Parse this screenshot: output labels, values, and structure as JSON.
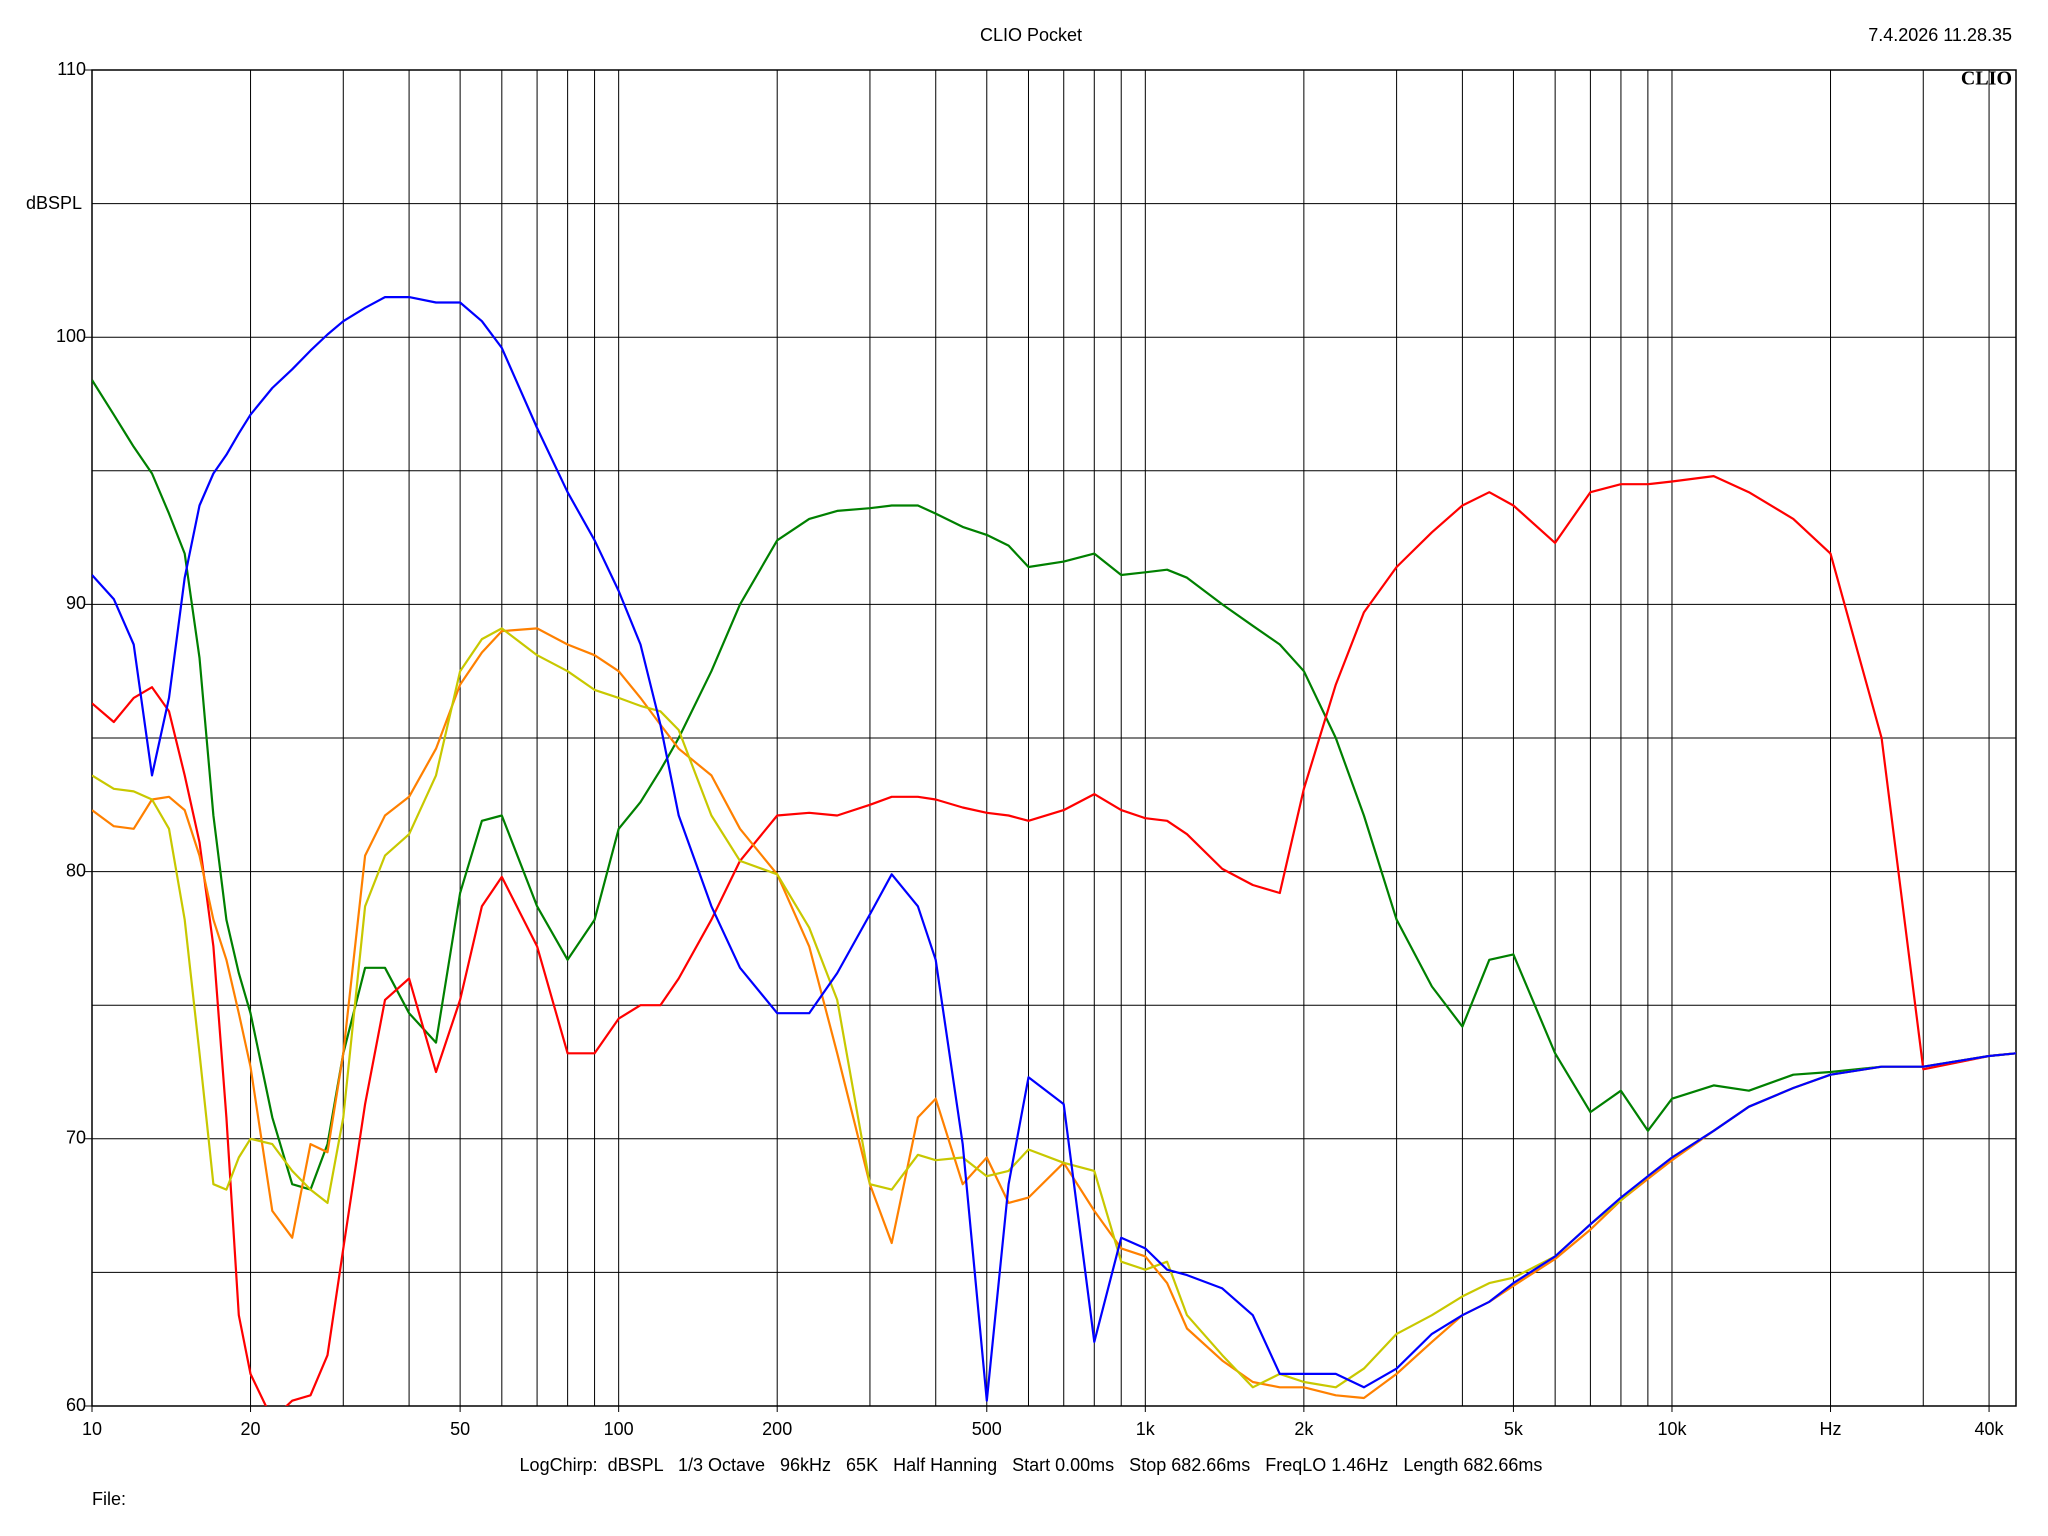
{
  "chart_data": {
    "type": "line",
    "title": "CLIO Pocket",
    "timestamp": "7.4.2026 11.28.35",
    "logo": "CLIO",
    "ylabel": "dBSPL",
    "footer": "LogChirp:  dBSPL   1/3 Octave   96kHz   65K   Half Hanning   Start 0.00ms   Stop 682.66ms   FreqLO 1.46Hz   Length 682.66ms",
    "file_label": "File:",
    "xscale": "log",
    "grid": true,
    "xlim": [
      10,
      45000
    ],
    "ylim": [
      60,
      110
    ],
    "xticks": [
      10,
      20,
      50,
      100,
      200,
      500,
      {
        "value": 1000,
        "label": "1k"
      },
      {
        "value": 2000,
        "label": "2k"
      },
      {
        "value": 5000,
        "label": "5k"
      },
      {
        "value": 10000,
        "label": "10k"
      },
      {
        "value": 20000,
        "label": "Hz"
      },
      {
        "value": 40000,
        "label": "40k"
      }
    ],
    "xminor": [
      30,
      40,
      60,
      70,
      80,
      90,
      300,
      400,
      600,
      700,
      800,
      900,
      3000,
      4000,
      6000,
      7000,
      8000,
      9000,
      30000
    ],
    "yticks": [
      60,
      70,
      80,
      90,
      100,
      110
    ],
    "yminor": [
      65,
      75,
      85,
      95,
      105
    ],
    "x": [
      10,
      11,
      12,
      13,
      14,
      15,
      16,
      17,
      18,
      19,
      20,
      22,
      24,
      26,
      28,
      30,
      33,
      36,
      40,
      45,
      50,
      55,
      60,
      70,
      80,
      90,
      100,
      110,
      120,
      130,
      150,
      170,
      200,
      230,
      260,
      300,
      330,
      370,
      400,
      450,
      500,
      550,
      600,
      700,
      800,
      900,
      1000,
      1100,
      1200,
      1400,
      1600,
      1800,
      2000,
      2300,
      2600,
      3000,
      3500,
      4000,
      4500,
      5000,
      6000,
      7000,
      8000,
      9000,
      10000,
      12000,
      14000,
      17000,
      20000,
      25000,
      30000,
      40000,
      45000
    ],
    "series": [
      {
        "color": "#008000",
        "values": [
          98.4,
          97.1,
          95.9,
          94.9,
          93.4,
          91.9,
          88,
          82.1,
          78.2,
          76.2,
          74.7,
          70.8,
          68.3,
          68.1,
          69.8,
          73.2,
          76.4,
          76.4,
          74.7,
          73.6,
          79.2,
          81.9,
          82.1,
          78.7,
          76.7,
          78.2,
          81.6,
          82.6,
          83.8,
          85,
          87.5,
          90,
          92.4,
          93.2,
          93.5,
          93.6,
          93.7,
          93.7,
          93.4,
          92.9,
          92.6,
          92.2,
          91.4,
          91.6,
          91.9,
          91.1,
          91.2,
          91.3,
          91.0,
          90,
          89.2,
          88.5,
          87.5,
          85,
          82.1,
          78.2,
          75.7,
          74.2,
          76.7,
          76.9,
          73.2,
          71.0,
          71.8,
          70.3,
          71.5,
          72,
          71.8,
          72.4,
          72.5,
          72.7,
          72.7,
          73.1,
          73.2
        ]
      },
      {
        "color": "#ff0000",
        "values": [
          86.3,
          85.6,
          86.5,
          86.9,
          86.0,
          83.6,
          81.1,
          77.2,
          70.8,
          63.4,
          61.2,
          59.5,
          60.2,
          60.4,
          61.9,
          65.9,
          71.3,
          75.2,
          76.0,
          72.5,
          75.2,
          78.7,
          79.8,
          77.2,
          73.2,
          73.2,
          74.5,
          75.0,
          75.0,
          76.0,
          78.2,
          80.4,
          82.1,
          82.2,
          82.1,
          82.5,
          82.8,
          82.8,
          82.7,
          82.4,
          82.2,
          82.1,
          81.9,
          82.3,
          82.9,
          82.3,
          82.0,
          81.9,
          81.4,
          80.1,
          79.5,
          79.2,
          83.1,
          87.0,
          89.7,
          91.4,
          92.7,
          93.7,
          94.2,
          93.7,
          92.3,
          94.2,
          94.5,
          94.5,
          94.6,
          94.8,
          94.2,
          93.2,
          91.9,
          85.0,
          72.6,
          73.1,
          73.2
        ]
      },
      {
        "color": "#ff8000",
        "values": [
          82.3,
          81.7,
          81.6,
          82.7,
          82.8,
          82.3,
          80.6,
          78.2,
          76.7,
          74.7,
          72.7,
          67.3,
          66.3,
          69.8,
          69.5,
          73.2,
          80.6,
          82.1,
          82.8,
          84.6,
          87,
          88.2,
          89,
          89.1,
          88.5,
          88.1,
          87.5,
          86.5,
          85.5,
          84.6,
          83.6,
          81.6,
          79.9,
          77.2,
          73.2,
          68.3,
          66.1,
          70.8,
          71.5,
          68.3,
          69.3,
          67.6,
          67.8,
          69.1,
          67.3,
          65.9,
          65.6,
          64.6,
          62.9,
          61.7,
          60.9,
          60.7,
          60.7,
          60.4,
          60.3,
          61.2,
          62.4,
          63.4,
          63.9,
          64.5,
          65.5,
          66.6,
          67.7,
          68.5,
          69.2,
          70.3,
          71.2,
          71.9,
          72.4,
          72.7,
          72.7,
          73.1,
          73.2
        ]
      },
      {
        "color": "#c8c800",
        "values": [
          83.6,
          83.1,
          83.0,
          82.7,
          81.6,
          78.2,
          73.2,
          68.3,
          68.1,
          69.3,
          70.0,
          69.8,
          68.8,
          68.1,
          67.6,
          70.8,
          78.7,
          80.6,
          81.4,
          83.6,
          87.5,
          88.7,
          89.1,
          88.1,
          87.5,
          86.8,
          86.5,
          86.2,
          86.0,
          85.3,
          82.1,
          80.4,
          79.9,
          77.9,
          75.2,
          68.3,
          68.1,
          69.4,
          69.2,
          69.3,
          68.6,
          68.8,
          69.6,
          69.1,
          68.8,
          65.4,
          65.1,
          65.4,
          63.4,
          61.9,
          60.7,
          61.2,
          60.9,
          60.7,
          61.4,
          62.7,
          63.4,
          64.1,
          64.6,
          64.8,
          65.6,
          66.8,
          67.7,
          68.6,
          69.3,
          70.3,
          71.2,
          71.9,
          72.4,
          72.7,
          72.7,
          73.1,
          73.2
        ]
      },
      {
        "color": "#0000ff",
        "values": [
          91.1,
          90.2,
          88.5,
          83.6,
          86.5,
          91,
          93.7,
          94.9,
          95.6,
          96.4,
          97.1,
          98.1,
          98.8,
          99.5,
          100.1,
          100.6,
          101.1,
          101.5,
          101.5,
          101.3,
          101.3,
          100.6,
          99.6,
          96.6,
          94.2,
          92.4,
          90.5,
          88.5,
          85.5,
          82.1,
          78.7,
          76.4,
          74.7,
          74.7,
          76.2,
          78.4,
          79.9,
          78.7,
          76.7,
          69.8,
          60.2,
          68.3,
          72.3,
          71.3,
          62.4,
          66.3,
          65.9,
          65.1,
          64.9,
          64.4,
          63.4,
          61.2,
          61.2,
          61.2,
          60.7,
          61.4,
          62.7,
          63.4,
          63.9,
          64.6,
          65.6,
          66.8,
          67.8,
          68.6,
          69.3,
          70.3,
          71.2,
          71.9,
          72.4,
          72.7,
          72.7,
          73.1,
          73.2
        ]
      }
    ]
  }
}
